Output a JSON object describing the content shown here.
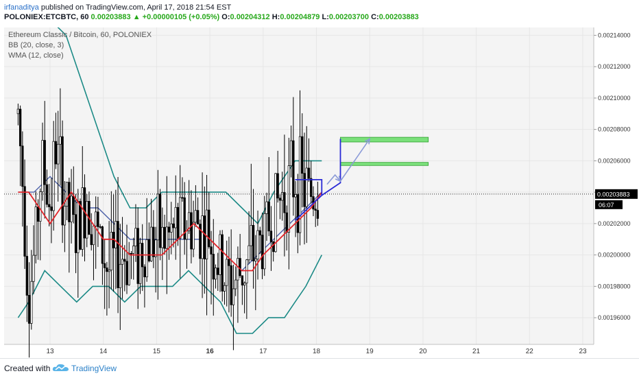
{
  "header": {
    "author": "irfanaditya",
    "published": " published on TradingView.com, April 17, 2018 21:54 EST",
    "symbol": "POLONIEX:ETCBTC, 60",
    "last": "0.00203883",
    "change_arrow": "▲",
    "change": "+0.00000105 (+0.05%)",
    "o_label": "O:",
    "o_value": "0.00204312",
    "h_label": "H:",
    "h_value": "0.00204879",
    "l_label": "L:",
    "l_value": "0.00203700",
    "c_label": "C:",
    "c_value": "0.00203883"
  },
  "legend": {
    "title": "Ethereum Classic / Bitcoin, 60, POLONIEX",
    "bb": "BB (20, close, 3)",
    "wma": "WMA (12, close)"
  },
  "footer": {
    "created": "Created with",
    "brand": "TradingView"
  },
  "icons": {
    "logo": "tradingview-cloud-icon"
  },
  "colors": {
    "bb": "#1b8a86",
    "wma": "#e3262b",
    "ma": "#4a5fa8",
    "candle_up": "#ffffff",
    "candle_down": "#000000",
    "drawing": "#2a2ad6",
    "arrow": "#8a9ad8",
    "target_zone": "#7be07b"
  },
  "chart_data": {
    "type": "candlestick",
    "title": "Ethereum Classic / Bitcoin, 60, POLONIEX",
    "x_ticks": [
      "13",
      "14",
      "15",
      "16",
      "17",
      "18",
      "19",
      "20",
      "21",
      "22",
      "23"
    ],
    "y_ticks": [
      "0.00214000",
      "0.00212000",
      "0.00210000",
      "0.00208000",
      "0.00206000",
      "0.00204000",
      "0.00202000",
      "0.00200000",
      "0.00198000",
      "0.00196000"
    ],
    "ylim": [
      0.00194,
      0.00215
    ],
    "last_price_label": "0.00203883",
    "countdown_label": "06:07",
    "close_path": [
      [
        12.4,
        0.00209
      ],
      [
        12.5,
        0.00204
      ],
      [
        12.6,
        0.00197
      ],
      [
        12.7,
        0.002
      ],
      [
        12.85,
        0.00206
      ],
      [
        13.0,
        0.00203
      ],
      [
        13.1,
        0.00207
      ],
      [
        13.3,
        0.00203
      ],
      [
        13.5,
        0.00201
      ],
      [
        13.7,
        0.00204
      ],
      [
        13.9,
        0.00201
      ],
      [
        14.1,
        0.00199
      ],
      [
        14.3,
        0.002
      ],
      [
        14.6,
        0.002
      ],
      [
        14.9,
        0.00201
      ],
      [
        15.2,
        0.00201
      ],
      [
        15.5,
        0.00202
      ],
      [
        15.8,
        0.00202
      ],
      [
        16.0,
        0.00201
      ],
      [
        16.2,
        0.00199
      ],
      [
        16.4,
        0.00198
      ],
      [
        16.6,
        0.00199
      ],
      [
        16.8,
        0.002
      ],
      [
        17.0,
        0.00201
      ],
      [
        17.2,
        0.00203
      ],
      [
        17.4,
        0.00204
      ],
      [
        17.6,
        0.00205
      ],
      [
        17.8,
        0.00204
      ],
      [
        18.05,
        0.00204
      ]
    ],
    "series": [
      {
        "name": "BB (20, close, 3)",
        "upper": [
          [
            12.5,
            0.00218
          ],
          [
            12.8,
            0.00216
          ],
          [
            13.0,
            0.00215
          ],
          [
            13.3,
            0.00214
          ],
          [
            13.6,
            0.00211
          ],
          [
            13.9,
            0.00208
          ],
          [
            14.2,
            0.00205
          ],
          [
            14.5,
            0.00203
          ],
          [
            14.8,
            0.00203
          ],
          [
            15.1,
            0.00204
          ],
          [
            15.4,
            0.00204
          ],
          [
            15.7,
            0.00204
          ],
          [
            16.0,
            0.00204
          ],
          [
            16.3,
            0.00204
          ],
          [
            16.6,
            0.00203
          ],
          [
            16.9,
            0.00202
          ],
          [
            17.2,
            0.00204
          ],
          [
            17.4,
            0.00205
          ],
          [
            17.6,
            0.00206
          ],
          [
            17.8,
            0.00206
          ],
          [
            18.1,
            0.00206
          ]
        ],
        "middle": [
          [
            12.4,
            0.00204
          ],
          [
            12.7,
            0.00204
          ],
          [
            13.0,
            0.00205
          ],
          [
            13.3,
            0.00204
          ],
          [
            13.6,
            0.00203
          ],
          [
            13.9,
            0.00203
          ],
          [
            14.2,
            0.00202
          ],
          [
            14.5,
            0.00201
          ],
          [
            14.8,
            0.00201
          ],
          [
            15.1,
            0.00201
          ],
          [
            15.4,
            0.00201
          ],
          [
            15.7,
            0.00201
          ],
          [
            16.0,
            0.00201
          ],
          [
            16.3,
            0.002
          ],
          [
            16.6,
            0.00199
          ],
          [
            16.9,
            0.002
          ],
          [
            17.2,
            0.00201
          ],
          [
            17.5,
            0.00202
          ],
          [
            17.8,
            0.00203
          ],
          [
            18.1,
            0.00204
          ]
        ],
        "lower": [
          [
            12.4,
            0.00196
          ],
          [
            12.6,
            0.00197
          ],
          [
            12.9,
            0.00199
          ],
          [
            13.2,
            0.00198
          ],
          [
            13.5,
            0.00197
          ],
          [
            13.8,
            0.00198
          ],
          [
            14.1,
            0.00198
          ],
          [
            14.4,
            0.00197
          ],
          [
            14.7,
            0.00198
          ],
          [
            15.0,
            0.00198
          ],
          [
            15.3,
            0.00198
          ],
          [
            15.6,
            0.00199
          ],
          [
            15.9,
            0.00198
          ],
          [
            16.2,
            0.00197
          ],
          [
            16.5,
            0.00195
          ],
          [
            16.8,
            0.00195
          ],
          [
            17.1,
            0.00196
          ],
          [
            17.4,
            0.00196
          ],
          [
            17.6,
            0.00197
          ],
          [
            17.8,
            0.00198
          ],
          [
            18.1,
            0.002
          ]
        ]
      },
      {
        "name": "WMA (12, close)",
        "values": [
          [
            12.4,
            0.00204
          ],
          [
            12.6,
            0.00204
          ],
          [
            12.8,
            0.00203
          ],
          [
            13.0,
            0.00202
          ],
          [
            13.2,
            0.00203
          ],
          [
            13.4,
            0.00204
          ],
          [
            13.6,
            0.00203
          ],
          [
            13.8,
            0.00202
          ],
          [
            14.0,
            0.00201
          ],
          [
            14.2,
            0.00201
          ],
          [
            14.5,
            0.002
          ],
          [
            14.8,
            0.002
          ],
          [
            15.1,
            0.002
          ],
          [
            15.4,
            0.00201
          ],
          [
            15.7,
            0.00202
          ],
          [
            16.0,
            0.00201
          ],
          [
            16.3,
            0.002
          ],
          [
            16.6,
            0.00199
          ],
          [
            16.8,
            0.00199
          ],
          [
            17.0,
            0.002
          ],
          [
            17.3,
            0.00201
          ],
          [
            17.6,
            0.00202
          ],
          [
            17.9,
            0.00203
          ],
          [
            18.1,
            0.00204
          ]
        ]
      }
    ],
    "drawings": {
      "target_zones": [
        [
          18.45,
          20.1,
          0.002072,
          0.002075
        ],
        [
          18.45,
          20.1,
          0.002057,
          0.002059
        ]
      ],
      "triangle": [
        [
          17.6,
          0.002022
        ],
        [
          18.1,
          0.002038
        ],
        [
          18.1,
          0.002048
        ],
        [
          17.6,
          0.002048
        ]
      ],
      "step_path": [
        [
          18.1,
          0.002038
        ],
        [
          18.45,
          0.002046
        ],
        [
          18.45,
          0.00206
        ],
        [
          18.45,
          0.002074
        ]
      ],
      "projection_arrows": [
        [
          [
            18.2,
            0.002045
          ],
          [
            18.35,
            0.002051
          ],
          [
            18.45,
            0.002047
          ]
        ],
        [
          [
            18.45,
            0.002047
          ],
          [
            19.0,
            0.002074
          ]
        ]
      ]
    }
  }
}
